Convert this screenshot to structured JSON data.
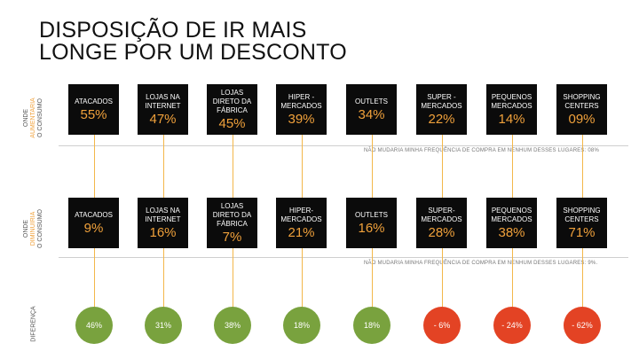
{
  "title": {
    "line1": "DISPOSIÇÃO DE IR MAIS",
    "line2": "LONGE POR UM DESCONTO"
  },
  "row1": {
    "side_label": {
      "onde": "ONDE",
      "action": "AUMENTARIA",
      "consumo": "O CONSUMO"
    },
    "items": [
      {
        "label": "ATACADOS",
        "pct": "55%"
      },
      {
        "label": "LOJAS NA INTERNET",
        "pct": "47%"
      },
      {
        "label": "LOJAS DIRETO DA FÁBRICA",
        "pct": "45%"
      },
      {
        "label": "HIPER - MERCADOS",
        "pct": "39%"
      },
      {
        "label": "OUTLETS",
        "pct": "34%"
      },
      {
        "label": "SUPER - MERCADOS",
        "pct": "22%"
      },
      {
        "label": "PEQUENOS MERCADOS",
        "pct": "14%"
      },
      {
        "label": "SHOPPING CENTERS",
        "pct": "09%"
      }
    ],
    "note": "NÃO MUDARIA MINHA FREQUÊNCIA DE COMPRA EM NENHUM DESSES LUGARES: 08%"
  },
  "row2": {
    "side_label": {
      "onde": "ONDE",
      "action": "DIMINUIRIA",
      "consumo": "O CONSUMO"
    },
    "items": [
      {
        "label": "ATACADOS",
        "pct": "9%"
      },
      {
        "label": "LOJAS NA INTERNET",
        "pct": "16%"
      },
      {
        "label": "LOJAS DIRETO DA FÁBRICA",
        "pct": "7%"
      },
      {
        "label": "HIPER- MERCADOS",
        "pct": "21%"
      },
      {
        "label": "OUTLETS",
        "pct": "16%"
      },
      {
        "label": "SUPER- MERCADOS",
        "pct": "28%"
      },
      {
        "label": "PEQUENOS MERCADOS",
        "pct": "38%"
      },
      {
        "label": "SHOPPING CENTERS",
        "pct": "71%"
      }
    ],
    "note": "NÃO MUDARIA MINHA FREQUÊNCIA DE COMPRA EM NENHUM DESSES LUGARES: 9%."
  },
  "diferenca": {
    "label": "DIFERENÇA",
    "values": [
      {
        "text": "46%",
        "status": "positive"
      },
      {
        "text": "31%",
        "status": "positive"
      },
      {
        "text": "38%",
        "status": "positive"
      },
      {
        "text": "18%",
        "status": "positive"
      },
      {
        "text": "18%",
        "status": "positive"
      },
      {
        "text": "- 6%",
        "status": "negative"
      },
      {
        "text": "- 24%",
        "status": "negative"
      },
      {
        "text": "- 62%",
        "status": "negative"
      }
    ]
  },
  "colors": {
    "accent": "#f0a13b",
    "positive": "#79a23e",
    "negative": "#e34324",
    "box": "#0b0b0b"
  }
}
